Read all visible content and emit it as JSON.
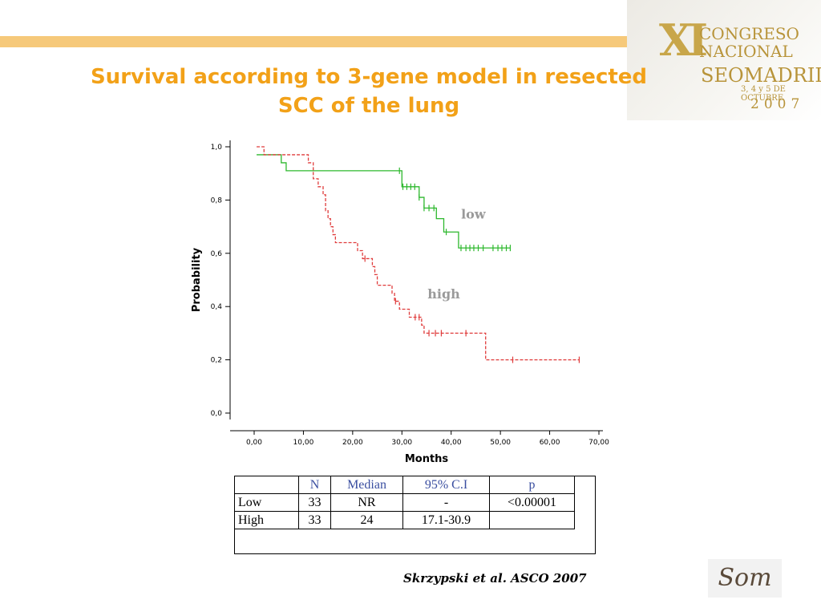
{
  "title": {
    "line1": "Survival according to 3-gene model in resected",
    "line2": "SCC of the lung"
  },
  "congress_logo": {
    "xi": "XI",
    "line1": "CONGRESO",
    "line2": "NACIONAL",
    "line3": "SEOMADRID",
    "line4": "3, 4 y 5 DE OCTUBRE",
    "line5": "2007"
  },
  "chart_data": {
    "type": "line",
    "subtype": "kaplan-meier",
    "xlabel": "Months",
    "ylabel": "Probability",
    "xlim": [
      0,
      70
    ],
    "ylim": [
      0,
      1
    ],
    "x_ticks": [
      "0,00",
      "10,00",
      "20,00",
      "30,00",
      "40,00",
      "50,00",
      "60,00",
      "70,00"
    ],
    "y_ticks": [
      "0,0",
      "0,2",
      "0,4",
      "0,6",
      "0,8",
      "1,0"
    ],
    "grid": false,
    "series": [
      {
        "name": "low",
        "color": "#2db82d",
        "dash": false,
        "steps": [
          [
            0.5,
            0.97
          ],
          [
            5.5,
            0.94
          ],
          [
            6.5,
            0.91
          ],
          [
            30,
            0.85
          ],
          [
            33.5,
            0.81
          ],
          [
            34.5,
            0.77
          ],
          [
            37,
            0.73
          ],
          [
            38.5,
            0.68
          ],
          [
            41.5,
            0.62
          ],
          [
            52,
            0.62
          ]
        ],
        "censored": [
          29.5,
          30.2,
          31,
          31.8,
          32.6,
          33.5,
          34.5,
          35.5,
          36.5,
          39,
          42,
          43,
          43.8,
          44.6,
          45.5,
          46.5,
          48.5,
          49.5,
          50.3,
          51.2,
          52
        ]
      },
      {
        "name": "high",
        "color": "#e03c3c",
        "dash": true,
        "steps": [
          [
            0.5,
            1.0
          ],
          [
            2,
            0.97
          ],
          [
            11,
            0.94
          ],
          [
            12,
            0.88
          ],
          [
            13,
            0.85
          ],
          [
            14,
            0.82
          ],
          [
            14.5,
            0.76
          ],
          [
            15,
            0.73
          ],
          [
            15.5,
            0.7
          ],
          [
            16,
            0.67
          ],
          [
            16.5,
            0.64
          ],
          [
            21,
            0.61
          ],
          [
            22,
            0.58
          ],
          [
            24,
            0.55
          ],
          [
            24.5,
            0.52
          ],
          [
            25,
            0.48
          ],
          [
            28,
            0.45
          ],
          [
            28.5,
            0.42
          ],
          [
            29.5,
            0.39
          ],
          [
            31.5,
            0.36
          ],
          [
            34,
            0.33
          ],
          [
            34.5,
            0.3
          ],
          [
            47,
            0.2
          ],
          [
            66,
            0.2
          ]
        ],
        "censored": [
          22.5,
          28.7,
          32.7,
          33.5,
          35.5,
          36.8,
          38,
          43,
          52.5,
          66
        ]
      }
    ],
    "annotations": [
      {
        "text": "low",
        "x": 44.5,
        "y": 0.73
      },
      {
        "text": "high",
        "x": 38.5,
        "y": 0.43
      }
    ]
  },
  "table": {
    "headers": [
      "",
      "N",
      "Median",
      "95% C.I",
      "p"
    ],
    "rows": [
      [
        "Low",
        "33",
        "NR",
        "-",
        "<0.00001"
      ],
      [
        "High",
        "33",
        "24",
        "17.1-30.9",
        ""
      ]
    ]
  },
  "citation": "Skrzypski et al. ASCO 2007",
  "footer_logo": "Som"
}
